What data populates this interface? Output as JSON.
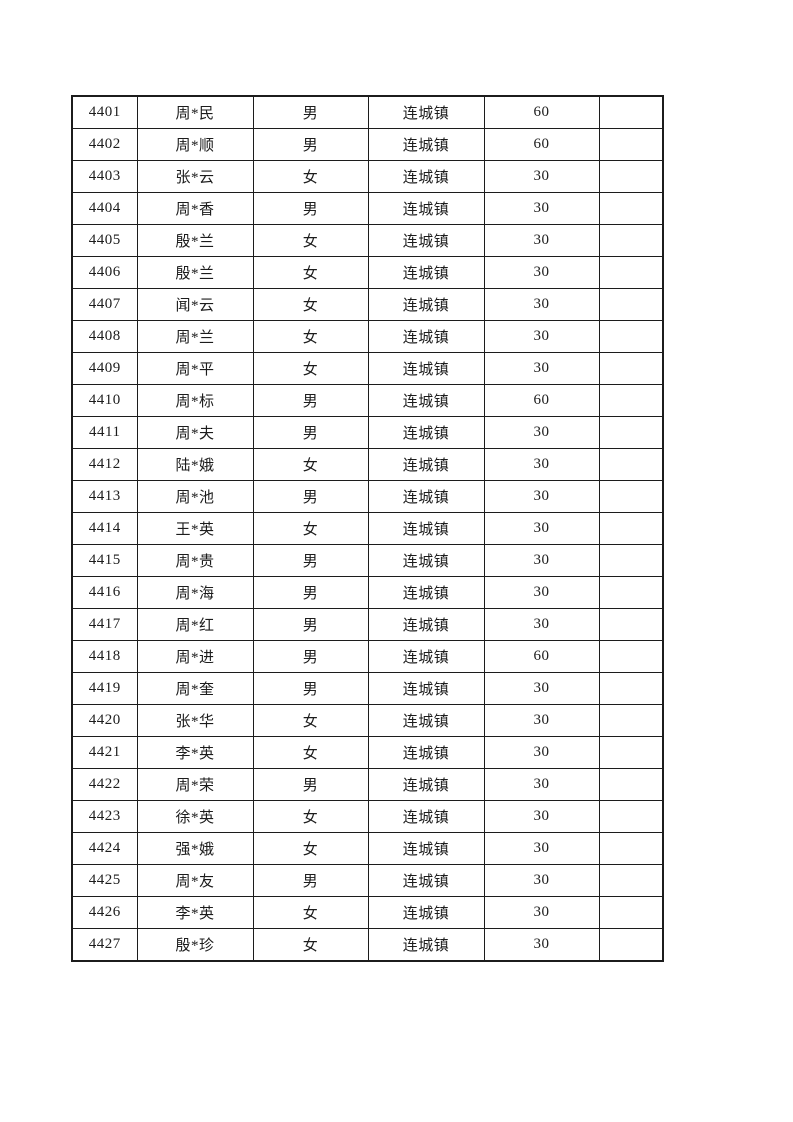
{
  "page": {
    "background_color": "#ffffff",
    "text_color": "#1c1c1c",
    "border_color": "#1c1c1c"
  },
  "table": {
    "column_roles": [
      "id",
      "name",
      "gender",
      "town",
      "amount",
      "blank"
    ],
    "rows": [
      {
        "id": "4401",
        "name": "周*民",
        "gender": "男",
        "town": "连城镇",
        "amount": "60",
        "blank": ""
      },
      {
        "id": "4402",
        "name": "周*顺",
        "gender": "男",
        "town": "连城镇",
        "amount": "60",
        "blank": ""
      },
      {
        "id": "4403",
        "name": "张*云",
        "gender": "女",
        "town": "连城镇",
        "amount": "30",
        "blank": ""
      },
      {
        "id": "4404",
        "name": "周*香",
        "gender": "男",
        "town": "连城镇",
        "amount": "30",
        "blank": ""
      },
      {
        "id": "4405",
        "name": "殷*兰",
        "gender": "女",
        "town": "连城镇",
        "amount": "30",
        "blank": ""
      },
      {
        "id": "4406",
        "name": "殷*兰",
        "gender": "女",
        "town": "连城镇",
        "amount": "30",
        "blank": ""
      },
      {
        "id": "4407",
        "name": "闻*云",
        "gender": "女",
        "town": "连城镇",
        "amount": "30",
        "blank": ""
      },
      {
        "id": "4408",
        "name": "周*兰",
        "gender": "女",
        "town": "连城镇",
        "amount": "30",
        "blank": ""
      },
      {
        "id": "4409",
        "name": "周*平",
        "gender": "女",
        "town": "连城镇",
        "amount": "30",
        "blank": ""
      },
      {
        "id": "4410",
        "name": "周*标",
        "gender": "男",
        "town": "连城镇",
        "amount": "60",
        "blank": ""
      },
      {
        "id": "4411",
        "name": "周*夫",
        "gender": "男",
        "town": "连城镇",
        "amount": "30",
        "blank": ""
      },
      {
        "id": "4412",
        "name": "陆*娥",
        "gender": "女",
        "town": "连城镇",
        "amount": "30",
        "blank": ""
      },
      {
        "id": "4413",
        "name": "周*池",
        "gender": "男",
        "town": "连城镇",
        "amount": "30",
        "blank": ""
      },
      {
        "id": "4414",
        "name": "王*英",
        "gender": "女",
        "town": "连城镇",
        "amount": "30",
        "blank": ""
      },
      {
        "id": "4415",
        "name": "周*贵",
        "gender": "男",
        "town": "连城镇",
        "amount": "30",
        "blank": ""
      },
      {
        "id": "4416",
        "name": "周*海",
        "gender": "男",
        "town": "连城镇",
        "amount": "30",
        "blank": ""
      },
      {
        "id": "4417",
        "name": "周*红",
        "gender": "男",
        "town": "连城镇",
        "amount": "30",
        "blank": ""
      },
      {
        "id": "4418",
        "name": "周*进",
        "gender": "男",
        "town": "连城镇",
        "amount": "60",
        "blank": ""
      },
      {
        "id": "4419",
        "name": "周*奎",
        "gender": "男",
        "town": "连城镇",
        "amount": "30",
        "blank": ""
      },
      {
        "id": "4420",
        "name": "张*华",
        "gender": "女",
        "town": "连城镇",
        "amount": "30",
        "blank": ""
      },
      {
        "id": "4421",
        "name": "李*英",
        "gender": "女",
        "town": "连城镇",
        "amount": "30",
        "blank": ""
      },
      {
        "id": "4422",
        "name": "周*荣",
        "gender": "男",
        "town": "连城镇",
        "amount": "30",
        "blank": ""
      },
      {
        "id": "4423",
        "name": "徐*英",
        "gender": "女",
        "town": "连城镇",
        "amount": "30",
        "blank": ""
      },
      {
        "id": "4424",
        "name": "强*娥",
        "gender": "女",
        "town": "连城镇",
        "amount": "30",
        "blank": ""
      },
      {
        "id": "4425",
        "name": "周*友",
        "gender": "男",
        "town": "连城镇",
        "amount": "30",
        "blank": ""
      },
      {
        "id": "4426",
        "name": "李*英",
        "gender": "女",
        "town": "连城镇",
        "amount": "30",
        "blank": ""
      },
      {
        "id": "4427",
        "name": "殷*珍",
        "gender": "女",
        "town": "连城镇",
        "amount": "30",
        "blank": ""
      }
    ]
  }
}
